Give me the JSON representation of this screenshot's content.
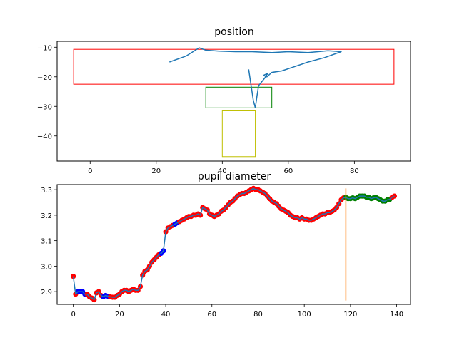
{
  "chart_data": [
    {
      "type": "line",
      "title": "position",
      "xlabel": "",
      "ylabel": "",
      "xlim": [
        -10,
        97
      ],
      "ylim": [
        -48.5,
        -8
      ],
      "xticks": [
        0,
        20,
        40,
        60,
        80
      ],
      "yticks": [
        -10,
        -20,
        -30,
        -40
      ],
      "colors": {
        "trace": "#1f77b4",
        "red_box": "#ff0000",
        "green_box": "#008000",
        "yellow_box": "#bfbf00"
      },
      "series": [
        {
          "x": [
            24,
            29,
            33,
            35,
            39,
            44,
            49,
            55,
            60,
            66,
            72,
            76,
            71,
            66,
            62,
            58,
            55,
            54,
            53.5,
            52.5,
            53.8,
            52.8,
            51,
            50.5,
            50,
            49.4,
            48
          ],
          "y": [
            -15,
            -13,
            -10.2,
            -11,
            -11.3,
            -11.5,
            -11.5,
            -11.8,
            -11.5,
            -11.8,
            -11.2,
            -11.5,
            -13.5,
            -15,
            -16.5,
            -18,
            -18.5,
            -19.5,
            -20,
            -19.5,
            -18.8,
            -20.5,
            -23,
            -26.5,
            -30.5,
            -28,
            -17.5
          ]
        }
      ],
      "rectangles": [
        {
          "label": "red",
          "x": [
            -5,
            92
          ],
          "y": [
            -22.5,
            -10.7
          ]
        },
        {
          "label": "green",
          "x": [
            35,
            55
          ],
          "y": [
            -30.5,
            -23.5
          ]
        },
        {
          "label": "yellow",
          "x": [
            40,
            50
          ],
          "y": [
            -47,
            -31.5
          ]
        }
      ]
    },
    {
      "type": "scatter",
      "title": "pupil diameter",
      "xlabel": "",
      "ylabel": "",
      "xlim": [
        -7,
        146
      ],
      "ylim": [
        2.85,
        3.32
      ],
      "xticks": [
        0,
        20,
        40,
        60,
        80,
        100,
        120,
        140
      ],
      "yticks": [
        2.9,
        3.0,
        3.1,
        3.2,
        3.3
      ],
      "colors": {
        "line": "#1f77b4",
        "red": "#ff0000",
        "blue": "#0000ff",
        "green": "#008000",
        "vline": "#ff7f0e"
      },
      "vline": {
        "x": 118,
        "y": [
          2.865,
          3.305
        ]
      },
      "series": [
        {
          "name": "",
          "x": [
            0,
            1,
            2,
            3,
            4,
            5,
            6,
            7,
            8,
            9,
            10,
            11,
            12,
            13,
            14,
            15,
            16,
            17,
            18,
            19,
            20,
            21,
            22,
            23,
            24,
            25,
            26,
            27,
            28,
            29,
            30,
            31,
            32,
            33,
            34,
            35,
            36,
            37,
            38,
            39,
            40,
            41,
            42,
            43,
            44,
            45,
            46,
            47,
            48,
            49,
            50,
            51,
            52,
            53,
            54,
            55,
            56,
            57,
            58,
            59,
            60,
            61,
            62,
            63,
            64,
            65,
            66,
            67,
            68,
            69,
            70,
            71,
            72,
            73,
            74,
            75,
            76,
            77,
            78,
            79,
            80,
            81,
            82,
            83,
            84,
            85,
            86,
            87,
            88,
            89,
            90,
            91,
            92,
            93,
            94,
            95,
            96,
            97,
            98,
            99,
            100,
            101,
            102,
            103,
            104,
            105,
            106,
            107,
            108,
            109,
            110,
            111,
            112,
            113,
            114,
            115,
            116,
            117,
            118,
            119,
            120,
            121,
            122,
            123,
            124,
            125,
            126,
            127,
            128,
            129,
            130,
            131,
            132,
            133,
            134,
            135,
            136,
            137,
            138,
            139
          ],
          "y": [
            2.96,
            2.89,
            2.9,
            2.9,
            2.9,
            2.89,
            2.89,
            2.88,
            2.875,
            2.868,
            2.895,
            2.9,
            2.885,
            2.88,
            2.885,
            2.882,
            2.88,
            2.878,
            2.878,
            2.885,
            2.89,
            2.9,
            2.905,
            2.905,
            2.9,
            2.905,
            2.91,
            2.905,
            2.905,
            2.92,
            2.965,
            2.98,
            2.985,
            3.0,
            3.015,
            3.025,
            3.035,
            3.045,
            3.05,
            3.06,
            3.135,
            3.15,
            3.155,
            3.16,
            3.165,
            3.17,
            3.175,
            3.18,
            3.185,
            3.19,
            3.195,
            3.195,
            3.2,
            3.2,
            3.205,
            3.2,
            3.23,
            3.225,
            3.22,
            3.205,
            3.2,
            3.195,
            3.2,
            3.205,
            3.215,
            3.22,
            3.23,
            3.24,
            3.25,
            3.255,
            3.265,
            3.275,
            3.28,
            3.285,
            3.285,
            3.29,
            3.295,
            3.3,
            3.305,
            3.3,
            3.3,
            3.295,
            3.29,
            3.285,
            3.275,
            3.265,
            3.255,
            3.25,
            3.245,
            3.235,
            3.225,
            3.22,
            3.215,
            3.21,
            3.2,
            3.195,
            3.19,
            3.19,
            3.185,
            3.19,
            3.185,
            3.185,
            3.18,
            3.18,
            3.185,
            3.19,
            3.195,
            3.2,
            3.205,
            3.205,
            3.21,
            3.21,
            3.215,
            3.22,
            3.23,
            3.245,
            3.26,
            3.268,
            3.27,
            3.265,
            3.265,
            3.268,
            3.265,
            3.27,
            3.275,
            3.275,
            3.275,
            3.27,
            3.27,
            3.265,
            3.268,
            3.27,
            3.265,
            3.26,
            3.255,
            3.255,
            3.26,
            3.262,
            3.27,
            3.275
          ],
          "markers": [
            "red",
            "red",
            "blue",
            "blue",
            "blue",
            "blue",
            "red",
            "red",
            "red",
            "red",
            "red",
            "red",
            "red",
            "blue",
            "blue",
            "blue",
            "red",
            "red",
            "red",
            "red",
            "red",
            "red",
            "red",
            "red",
            "red",
            "red",
            "red",
            "red",
            "red",
            "red",
            "red",
            "red",
            "red",
            "red",
            "red",
            "red",
            "red",
            "red",
            "blue",
            "blue",
            "red",
            "red",
            "red",
            "red",
            "blue",
            "blue",
            "red",
            "red",
            "red",
            "red",
            "red",
            "red",
            "red",
            "red",
            "red",
            "red",
            "red",
            "red",
            "red",
            "red",
            "red",
            "red",
            "red",
            "red",
            "red",
            "red",
            "red",
            "red",
            "red",
            "red",
            "red",
            "red",
            "red",
            "red",
            "red",
            "red",
            "red",
            "red",
            "red",
            "red",
            "red",
            "red",
            "red",
            "red",
            "red",
            "red",
            "red",
            "red",
            "red",
            "red",
            "red",
            "red",
            "red",
            "red",
            "red",
            "red",
            "red",
            "red",
            "red",
            "red",
            "red",
            "red",
            "red",
            "red",
            "red",
            "red",
            "red",
            "red",
            "red",
            "red",
            "red",
            "red",
            "red",
            "red",
            "red",
            "red",
            "red",
            "red",
            "green",
            "green",
            "green",
            "green",
            "green",
            "green",
            "green",
            "green",
            "green",
            "green",
            "green",
            "green",
            "green",
            "green",
            "green",
            "green",
            "green",
            "green",
            "green",
            "green",
            "red",
            "red"
          ]
        }
      ]
    }
  ]
}
